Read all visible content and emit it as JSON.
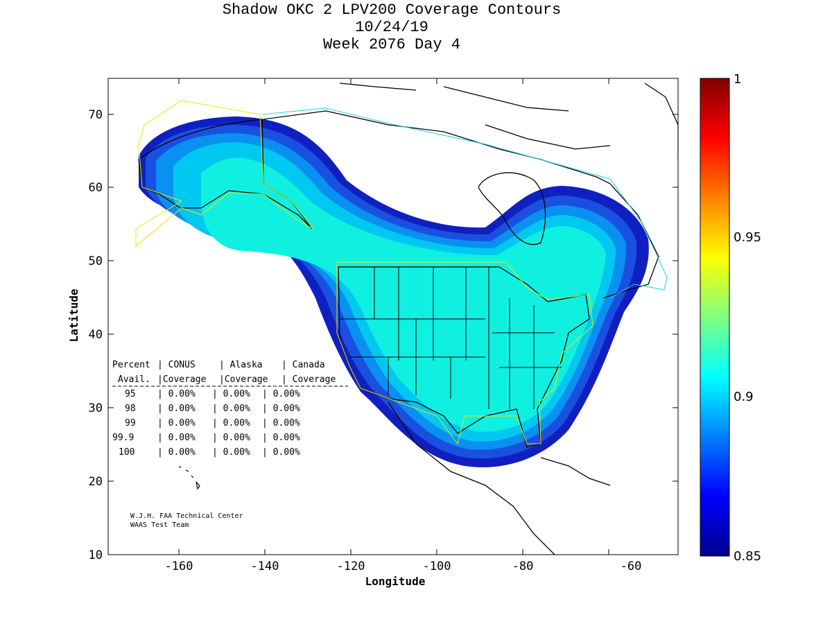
{
  "title": {
    "line1": "Shadow OKC 2 LPV200 Coverage Contours",
    "line2": "10/24/19",
    "line3": "Week 2076 Day 4"
  },
  "axes": {
    "xlabel": "Longitude",
    "ylabel": "Latitude",
    "xticks": [
      "-160",
      "-140",
      "-120",
      "-100",
      "-80",
      "-60"
    ],
    "yticks": [
      "70",
      "60",
      "50",
      "40",
      "30",
      "20",
      "10"
    ]
  },
  "colorbar": {
    "labels": [
      "1",
      "0.95",
      "0.9",
      "0.85"
    ]
  },
  "table": {
    "header1": [
      "Percent",
      "| CONUS",
      "| Alaska",
      "| Canada"
    ],
    "header2": [
      "Avail.",
      "|Coverage",
      "|Coverage",
      "| Coverage"
    ],
    "rows": [
      [
        "95",
        "| 0.00%",
        "| 0.00%",
        "| 0.00%"
      ],
      [
        "98",
        "| 0.00%",
        "| 0.00%",
        "| 0.00%"
      ],
      [
        "99",
        "| 0.00%",
        "| 0.00%",
        "| 0.00%"
      ],
      [
        "99.9",
        "| 0.00%",
        "| 0.00%",
        "| 0.00%"
      ],
      [
        "100",
        "| 0.00%",
        "| 0.00%",
        "| 0.00%"
      ]
    ]
  },
  "credit": {
    "line1": "W.J.H. FAA Technical Center",
    "line2": "WAAS Test Team"
  },
  "colors": {
    "cover_1": "#1020c0",
    "cover_2": "#1a50e0",
    "cover_3": "#0a90f0",
    "cover_4": "#00c8f0",
    "cover_5": "#10f0e0",
    "boundary_yellow": "#e8e800",
    "boundary_cyan": "#20d0e0"
  },
  "chart_data": {
    "type": "map",
    "title": "Shadow OKC 2 LPV200 Coverage Contours",
    "subtitle": [
      "10/24/19",
      "Week 2076 Day 4"
    ],
    "xlabel": "Longitude",
    "ylabel": "Latitude",
    "xlim": [
      -175,
      -50
    ],
    "ylim": [
      10,
      75
    ],
    "xticks": [
      -160,
      -140,
      -120,
      -100,
      -80,
      -60
    ],
    "yticks": [
      10,
      20,
      30,
      40,
      50,
      60,
      70
    ],
    "colorbar": {
      "min": 0.85,
      "max": 1.0,
      "ticks": [
        0.85,
        0.9,
        0.95,
        1.0
      ]
    },
    "coverage": {
      "CONUS": {
        "95": "0.00%",
        "98": "0.00%",
        "99": "0.00%",
        "99.9": "0.00%",
        "100": "0.00%"
      },
      "Alaska": {
        "95": "0.00%",
        "98": "0.00%",
        "99": "0.00%",
        "99.9": "0.00%",
        "100": "0.00%"
      },
      "Canada": {
        "95": "0.00%",
        "98": "0.00%",
        "99": "0.00%",
        "99.9": "0.00%",
        "100": "0.00%"
      }
    }
  }
}
